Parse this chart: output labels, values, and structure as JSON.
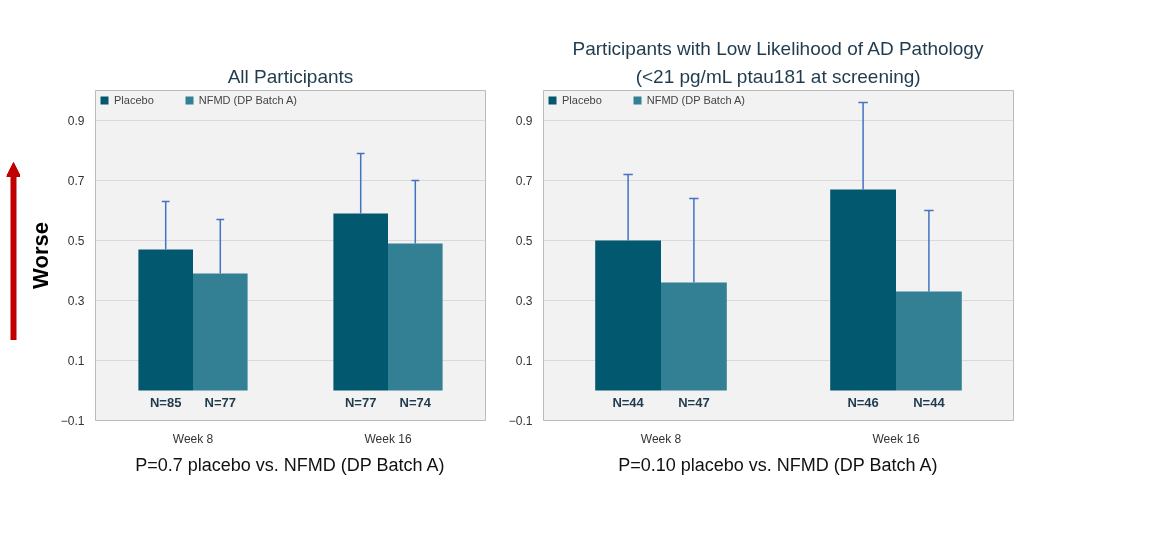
{
  "chart_data": [
    {
      "type": "bar",
      "title": "All Participants",
      "categories": [
        "Week 8",
        "Week 16"
      ],
      "ylabel": "Worse",
      "ylim": [
        -0.1,
        1.0
      ],
      "yticks": [
        -0.1,
        0.1,
        0.3,
        0.5,
        0.7,
        0.9
      ],
      "grid": "y",
      "legend": "top left",
      "series": [
        {
          "name": "Placebo",
          "color": "#02586e",
          "values": [
            0.47,
            0.59
          ],
          "errors": [
            [
              0.47,
              0.63
            ],
            [
              0.59,
              0.79
            ]
          ]
        },
        {
          "name": "NFMD (DP Batch A)",
          "color": "#337f94",
          "values": [
            0.39,
            0.49
          ],
          "errors": [
            [
              0.39,
              0.57
            ],
            [
              0.49,
              0.7
            ]
          ]
        }
      ],
      "annotations": [
        "N=85",
        "N=77",
        "N=77",
        "N=74",
        "P=0.7 placebo vs. NFMD (DP Batch A)"
      ]
    },
    {
      "type": "bar",
      "title": "Participants with Low Likelihood of AD Pathology",
      "subtitle": "(<21 pg/mL ptau181 at screening)",
      "categories": [
        "Week 8",
        "Week 16"
      ],
      "ylim": [
        -0.1,
        1.0
      ],
      "yticks": [
        -0.1,
        0.1,
        0.3,
        0.5,
        0.7,
        0.9
      ],
      "grid": "y",
      "legend": "top left",
      "series": [
        {
          "name": "Placebo",
          "color": "#02586e",
          "values": [
            0.5,
            0.67
          ],
          "errors": [
            [
              0.5,
              0.72
            ],
            [
              0.67,
              0.96
            ]
          ]
        },
        {
          "name": "NFMD (DP Batch A)",
          "color": "#337f94",
          "values": [
            0.36,
            0.33
          ],
          "errors": [
            [
              0.36,
              0.64
            ],
            [
              0.33,
              0.6
            ]
          ]
        }
      ],
      "annotations": [
        "N=44",
        "N=47",
        "N=46",
        "N=44",
        "P=0.10 placebo vs. NFMD (DP Batch A)"
      ]
    }
  ]
}
